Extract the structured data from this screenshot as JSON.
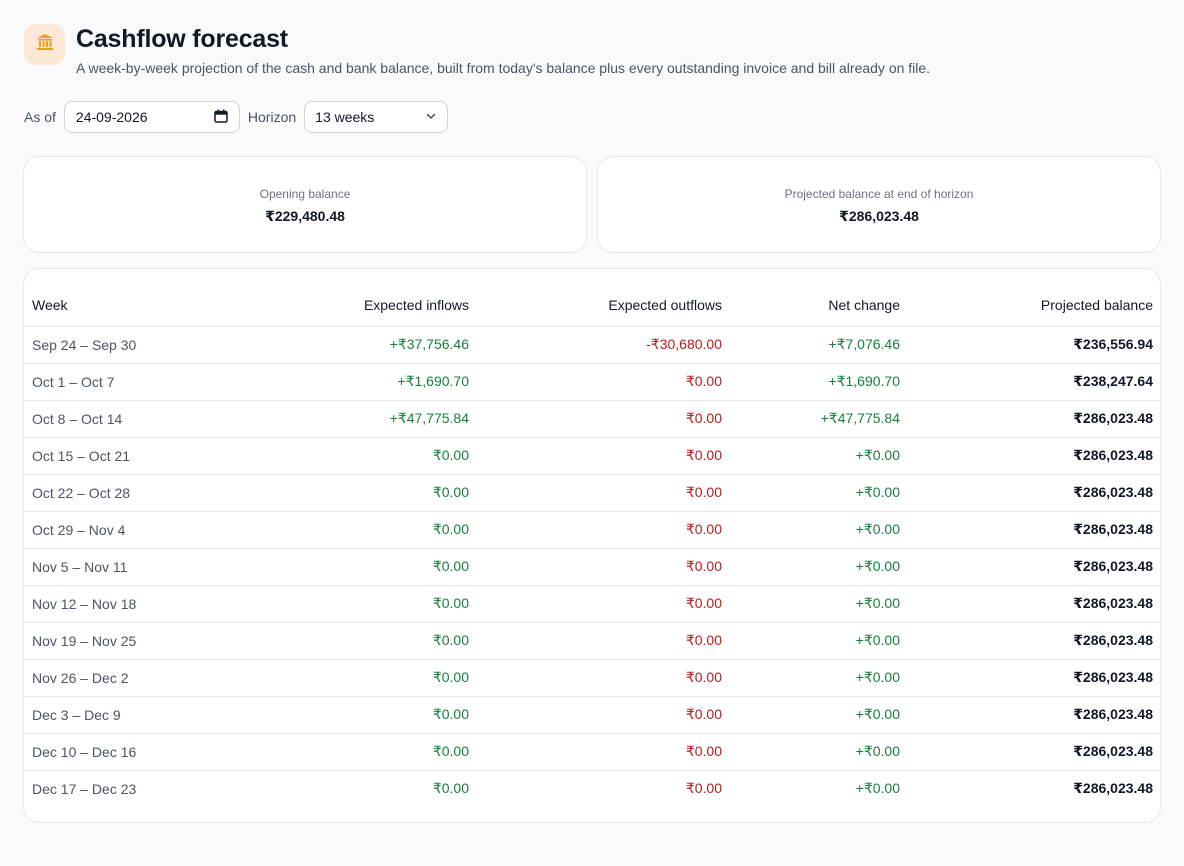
{
  "header": {
    "title": "Cashflow forecast",
    "subtitle": "A week-by-week projection of the cash and bank balance, built from today's balance plus every outstanding invoice and bill already on file.",
    "icon": "bank-icon"
  },
  "controls": {
    "as_of_label": "As of",
    "as_of_value": "24-09-2026",
    "horizon_label": "Horizon",
    "horizon_value": "13 weeks"
  },
  "summary": {
    "opening_label": "Opening balance",
    "opening_value": "₹229,480.48",
    "projected_label": "Projected balance at end of horizon",
    "projected_value": "₹286,023.48"
  },
  "table": {
    "headers": [
      "Week",
      "Expected inflows",
      "Expected outflows",
      "Net change",
      "Projected balance"
    ],
    "rows": [
      [
        "Sep 24 – Sep 30",
        "+₹37,756.46",
        "-₹30,680.00",
        "+₹7,076.46",
        "₹236,556.94"
      ],
      [
        "Oct 1 – Oct 7",
        "+₹1,690.70",
        "₹0.00",
        "+₹1,690.70",
        "₹238,247.64"
      ],
      [
        "Oct 8 – Oct 14",
        "+₹47,775.84",
        "₹0.00",
        "+₹47,775.84",
        "₹286,023.48"
      ],
      [
        "Oct 15 – Oct 21",
        "₹0.00",
        "₹0.00",
        "+₹0.00",
        "₹286,023.48"
      ],
      [
        "Oct 22 – Oct 28",
        "₹0.00",
        "₹0.00",
        "+₹0.00",
        "₹286,023.48"
      ],
      [
        "Oct 29 – Nov 4",
        "₹0.00",
        "₹0.00",
        "+₹0.00",
        "₹286,023.48"
      ],
      [
        "Nov 5 – Nov 11",
        "₹0.00",
        "₹0.00",
        "+₹0.00",
        "₹286,023.48"
      ],
      [
        "Nov 12 – Nov 18",
        "₹0.00",
        "₹0.00",
        "+₹0.00",
        "₹286,023.48"
      ],
      [
        "Nov 19 – Nov 25",
        "₹0.00",
        "₹0.00",
        "+₹0.00",
        "₹286,023.48"
      ],
      [
        "Nov 26 – Dec 2",
        "₹0.00",
        "₹0.00",
        "+₹0.00",
        "₹286,023.48"
      ],
      [
        "Dec 3 – Dec 9",
        "₹0.00",
        "₹0.00",
        "+₹0.00",
        "₹286,023.48"
      ],
      [
        "Dec 10 – Dec 16",
        "₹0.00",
        "₹0.00",
        "+₹0.00",
        "₹286,023.48"
      ],
      [
        "Dec 17 – Dec 23",
        "₹0.00",
        "₹0.00",
        "+₹0.00",
        "₹286,023.48"
      ]
    ]
  },
  "colors": {
    "positive": "#15803d",
    "negative": "#b91c1c",
    "logo_bg": "#fde8d7",
    "logo_icon": "#e8a317"
  }
}
